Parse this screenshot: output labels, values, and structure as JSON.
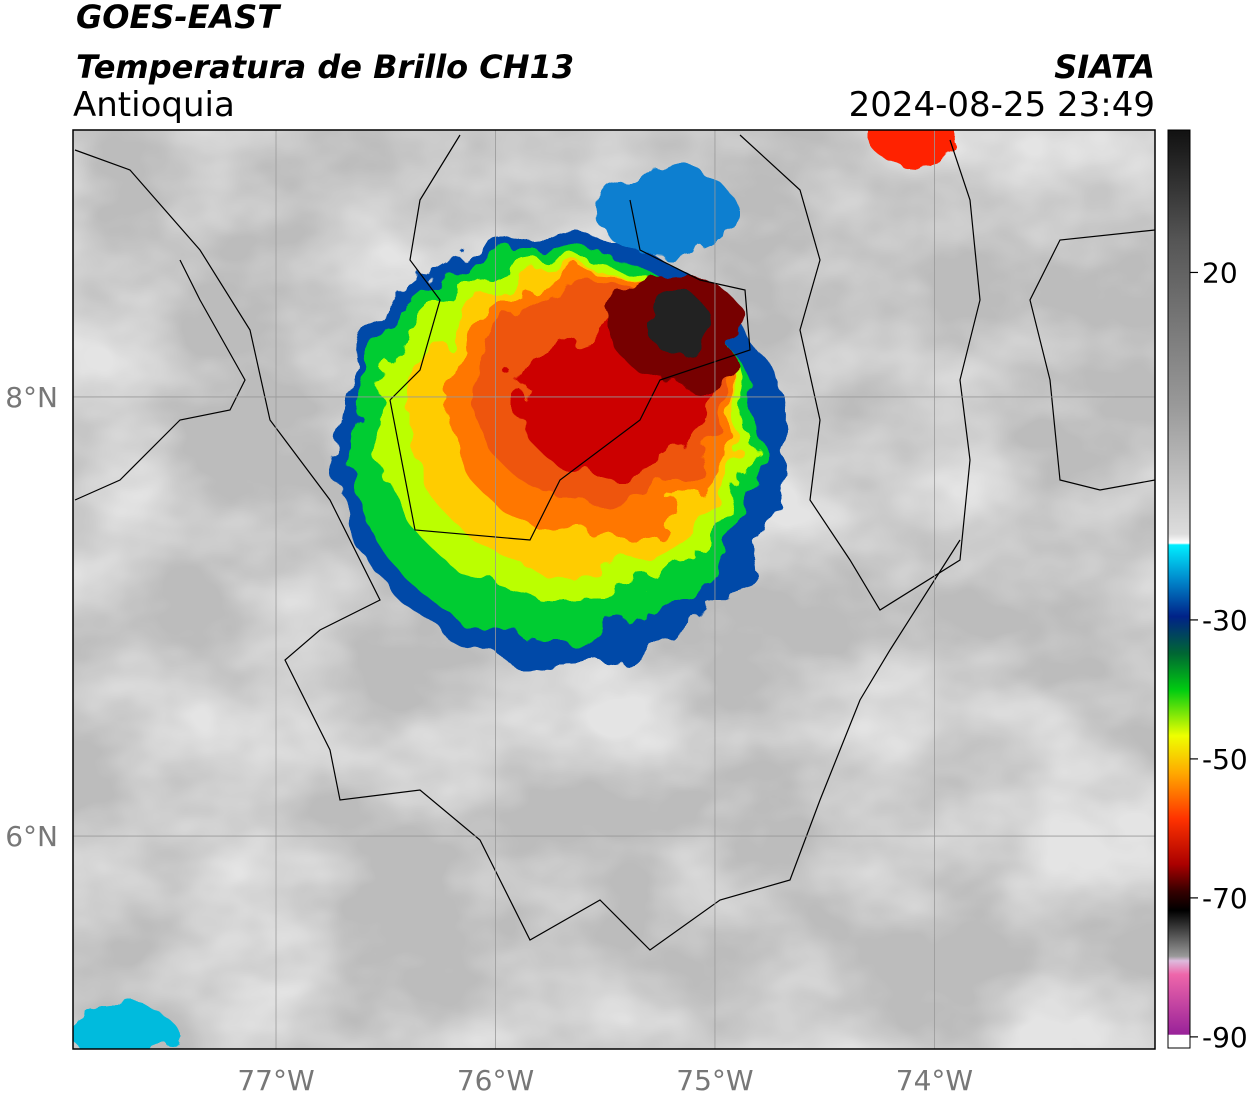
{
  "header": {
    "title": "GOES-EAST",
    "subtitle": "Temperatura de Brillo CH13",
    "region": "Antioquia",
    "agency": "SIATA",
    "datetime": "2024-08-25 23:49"
  },
  "map": {
    "lonlim": [
      -77.925,
      -72.995
    ],
    "latlim": [
      5.03,
      9.216
    ],
    "lon_ticks": [
      {
        "value": -77,
        "label": "77°W"
      },
      {
        "value": -76,
        "label": "76°W"
      },
      {
        "value": -75,
        "label": "75°W"
      },
      {
        "value": -74,
        "label": "74°W"
      }
    ],
    "lat_ticks": [
      {
        "value": 8,
        "label": "8°N"
      },
      {
        "value": 6,
        "label": "6°N"
      }
    ]
  },
  "colorbar": {
    "range": [
      -91.6,
      40.5
    ],
    "ticks": [
      20,
      -30,
      -50,
      -70,
      -90
    ]
  }
}
